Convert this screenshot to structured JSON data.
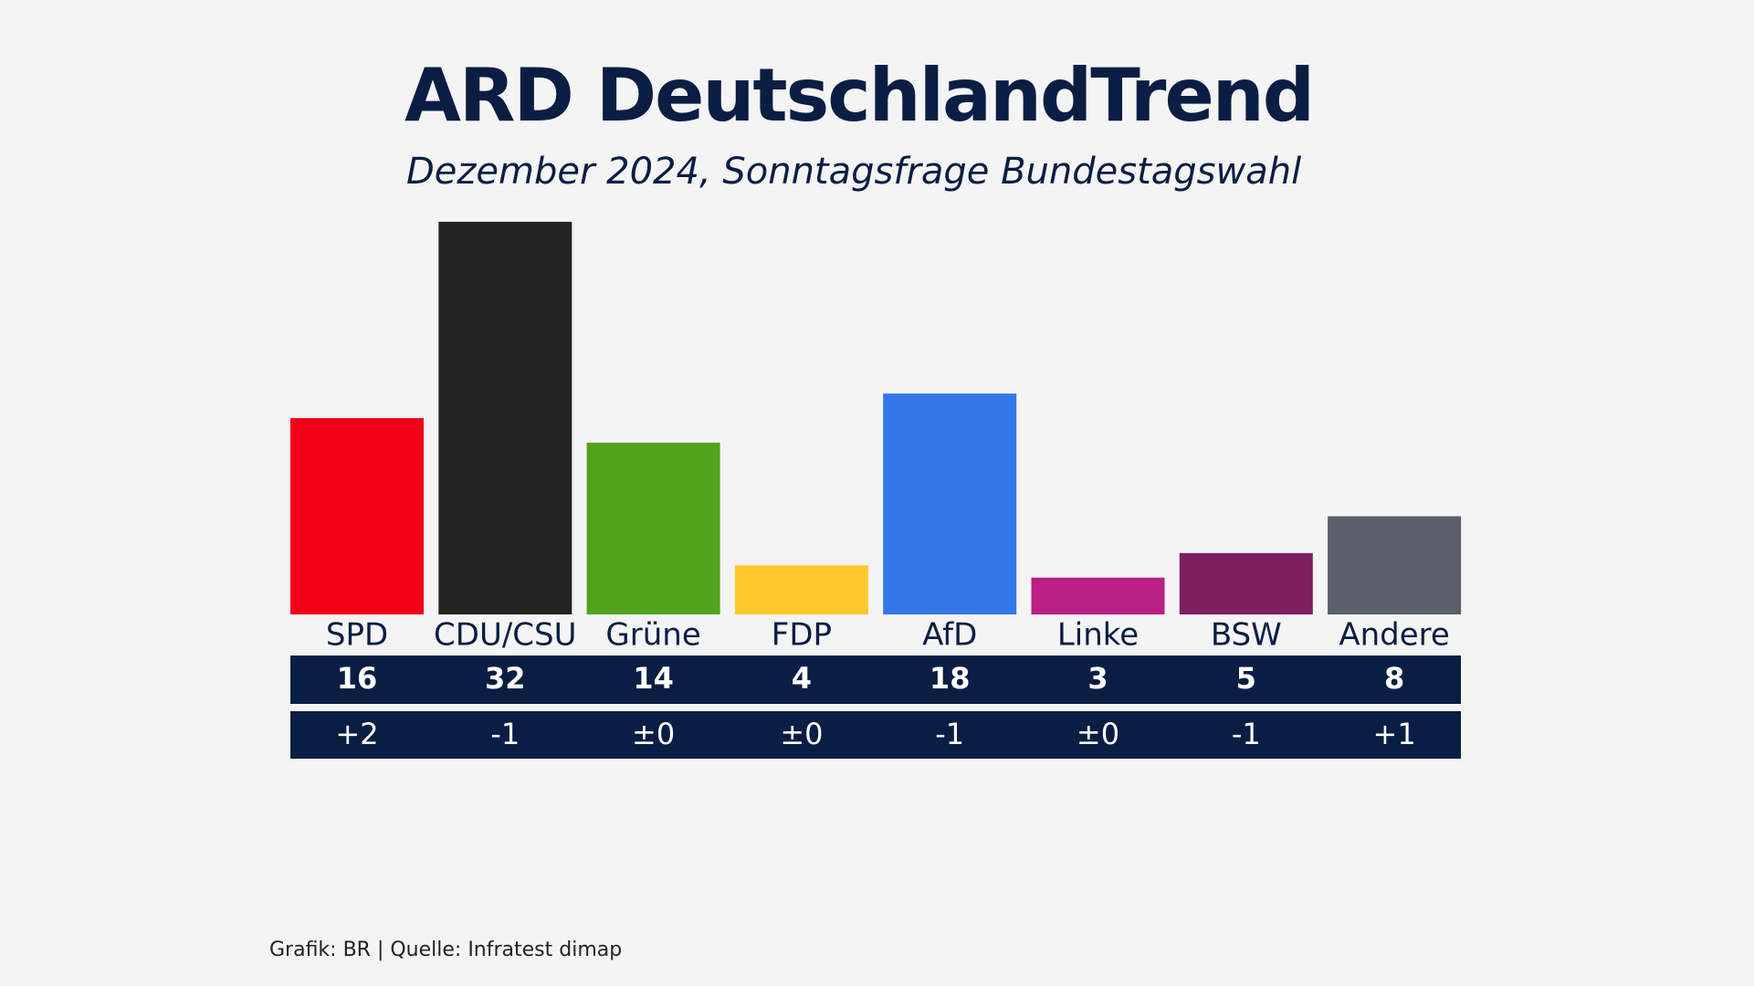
{
  "chart_data": {
    "type": "bar",
    "title": "ARD DeutschlandTrend",
    "subtitle": "Dezember 2024, Sonntagsfrage Bundestagswahl",
    "categories": [
      "SPD",
      "CDU/CSU",
      "Grüne",
      "FDP",
      "AfD",
      "Linke",
      "BSW",
      "Andere"
    ],
    "values": [
      16,
      32,
      14,
      4,
      18,
      3,
      5,
      8
    ],
    "colors": [
      "#f00118",
      "#232323",
      "#51a21d",
      "#ffc82a",
      "#3477e7",
      "#b91f85",
      "#7e1f5f",
      "#5a5f6b"
    ],
    "changes": [
      "+2",
      "-1",
      "±0",
      "±0",
      "-1",
      "±0",
      "-1",
      "+1"
    ],
    "source": "Grafik: BR | Quelle: Infratest dimap"
  }
}
